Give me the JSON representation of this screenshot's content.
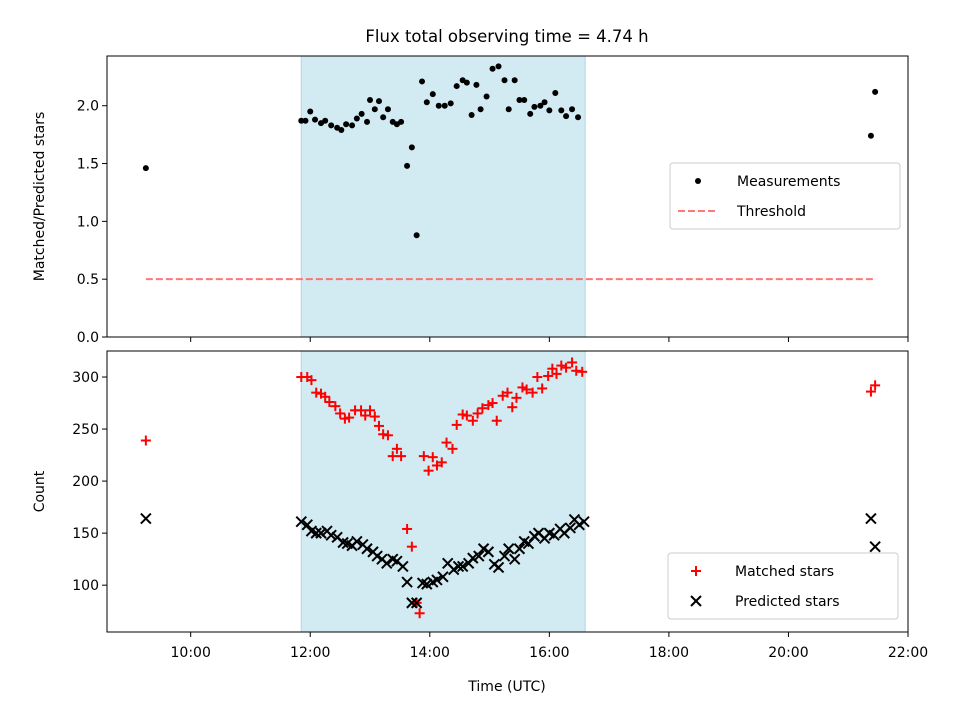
{
  "title": "Flux total observing time = 4.74 h",
  "colors": {
    "shade": "#add8e6",
    "threshold": "#ff6060",
    "matched": "#ff0000",
    "predicted": "#000000",
    "measure": "#000000"
  },
  "x_axis": {
    "label": "Time (UTC)",
    "min_hours": 8.6,
    "max_hours": 22.0,
    "ticks": [
      {
        "h": 10,
        "label": "10:00"
      },
      {
        "h": 12,
        "label": "12:00"
      },
      {
        "h": 14,
        "label": "14:00"
      },
      {
        "h": 16,
        "label": "16:00"
      },
      {
        "h": 18,
        "label": "18:00"
      },
      {
        "h": 20,
        "label": "20:00"
      },
      {
        "h": 22,
        "label": "22:00"
      }
    ]
  },
  "chart_data": [
    {
      "type": "scatter",
      "ylabel": "Matched/Predicted stars",
      "ylim": [
        0,
        2.43
      ],
      "yticks": [
        {
          "v": 0.0,
          "label": "0.0"
        },
        {
          "v": 0.5,
          "label": "0.5"
        },
        {
          "v": 1.0,
          "label": "1.0"
        },
        {
          "v": 1.5,
          "label": "1.5"
        },
        {
          "v": 2.0,
          "label": "2.0"
        }
      ],
      "shaded_span": [
        11.85,
        16.6
      ],
      "legend": {
        "position": "center-right",
        "entries": [
          "Measurements",
          "Threshold"
        ]
      },
      "threshold": {
        "name": "Threshold",
        "y": 0.5,
        "x": [
          9.25,
          21.42
        ]
      },
      "series": [
        {
          "name": "Measurements",
          "points": [
            [
              9.25,
              1.46
            ],
            [
              11.85,
              1.87
            ],
            [
              11.92,
              1.87
            ],
            [
              12.0,
              1.95
            ],
            [
              12.08,
              1.88
            ],
            [
              12.18,
              1.85
            ],
            [
              12.25,
              1.87
            ],
            [
              12.35,
              1.83
            ],
            [
              12.45,
              1.81
            ],
            [
              12.52,
              1.79
            ],
            [
              12.6,
              1.84
            ],
            [
              12.7,
              1.83
            ],
            [
              12.78,
              1.89
            ],
            [
              12.86,
              1.93
            ],
            [
              12.95,
              1.86
            ],
            [
              13.0,
              2.05
            ],
            [
              13.08,
              1.97
            ],
            [
              13.15,
              2.04
            ],
            [
              13.22,
              1.9
            ],
            [
              13.3,
              1.97
            ],
            [
              13.38,
              1.86
            ],
            [
              13.45,
              1.84
            ],
            [
              13.52,
              1.86
            ],
            [
              13.62,
              1.48
            ],
            [
              13.7,
              1.64
            ],
            [
              13.78,
              0.88
            ],
            [
              13.87,
              2.21
            ],
            [
              13.95,
              2.03
            ],
            [
              14.05,
              2.1
            ],
            [
              14.15,
              2.0
            ],
            [
              14.25,
              2.0
            ],
            [
              14.35,
              2.02
            ],
            [
              14.45,
              2.17
            ],
            [
              14.55,
              2.22
            ],
            [
              14.62,
              2.2
            ],
            [
              14.7,
              1.92
            ],
            [
              14.78,
              2.18
            ],
            [
              14.85,
              1.97
            ],
            [
              14.95,
              2.08
            ],
            [
              15.05,
              2.32
            ],
            [
              15.15,
              2.34
            ],
            [
              15.25,
              2.22
            ],
            [
              15.32,
              1.97
            ],
            [
              15.42,
              2.22
            ],
            [
              15.5,
              2.05
            ],
            [
              15.58,
              2.05
            ],
            [
              15.68,
              1.93
            ],
            [
              15.75,
              1.99
            ],
            [
              15.85,
              2.0
            ],
            [
              15.92,
              2.03
            ],
            [
              16.0,
              1.96
            ],
            [
              16.1,
              2.11
            ],
            [
              16.2,
              1.96
            ],
            [
              16.28,
              1.91
            ],
            [
              16.38,
              1.97
            ],
            [
              16.48,
              1.9
            ],
            [
              21.38,
              1.74
            ],
            [
              21.45,
              2.12
            ]
          ]
        }
      ]
    },
    {
      "type": "scatter",
      "ylabel": "Count",
      "ylim": [
        55,
        325
      ],
      "yticks": [
        {
          "v": 100,
          "label": "100"
        },
        {
          "v": 150,
          "label": "150"
        },
        {
          "v": 200,
          "label": "200"
        },
        {
          "v": 250,
          "label": "250"
        },
        {
          "v": 300,
          "label": "300"
        }
      ],
      "shaded_span": [
        11.85,
        16.6
      ],
      "legend": {
        "position": "lower-right",
        "entries": [
          "Matched stars",
          "Predicted stars"
        ]
      },
      "series": [
        {
          "name": "Matched stars",
          "marker": "plus",
          "points": [
            [
              9.25,
              239
            ],
            [
              11.85,
              300
            ],
            [
              11.95,
              300
            ],
            [
              12.02,
              297
            ],
            [
              12.1,
              285
            ],
            [
              12.18,
              284
            ],
            [
              12.25,
              281
            ],
            [
              12.32,
              276
            ],
            [
              12.42,
              272
            ],
            [
              12.5,
              265
            ],
            [
              12.58,
              260
            ],
            [
              12.65,
              261
            ],
            [
              12.75,
              268
            ],
            [
              12.85,
              268
            ],
            [
              12.92,
              263
            ],
            [
              13.0,
              268
            ],
            [
              13.08,
              262
            ],
            [
              13.15,
              253
            ],
            [
              13.22,
              245
            ],
            [
              13.3,
              244
            ],
            [
              13.38,
              224
            ],
            [
              13.45,
              231
            ],
            [
              13.52,
              224
            ],
            [
              13.62,
              154
            ],
            [
              13.7,
              137
            ],
            [
              13.78,
              83
            ],
            [
              13.83,
              73
            ],
            [
              13.9,
              224
            ],
            [
              13.98,
              210
            ],
            [
              14.05,
              223
            ],
            [
              14.12,
              215
            ],
            [
              14.2,
              218
            ],
            [
              14.28,
              237
            ],
            [
              14.38,
              231
            ],
            [
              14.45,
              254
            ],
            [
              14.55,
              264
            ],
            [
              14.62,
              263
            ],
            [
              14.72,
              258
            ],
            [
              14.8,
              265
            ],
            [
              14.88,
              270
            ],
            [
              14.98,
              273
            ],
            [
              15.05,
              275
            ],
            [
              15.12,
              258
            ],
            [
              15.22,
              282
            ],
            [
              15.3,
              285
            ],
            [
              15.38,
              271
            ],
            [
              15.45,
              280
            ],
            [
              15.55,
              290
            ],
            [
              15.62,
              288
            ],
            [
              15.72,
              285
            ],
            [
              15.8,
              300
            ],
            [
              15.88,
              289
            ],
            [
              15.98,
              301
            ],
            [
              16.05,
              308
            ],
            [
              16.12,
              303
            ],
            [
              16.2,
              311
            ],
            [
              16.28,
              309
            ],
            [
              16.38,
              314
            ],
            [
              16.45,
              306
            ],
            [
              16.55,
              305
            ],
            [
              21.38,
              286
            ],
            [
              21.45,
              292
            ]
          ]
        },
        {
          "name": "Predicted stars",
          "marker": "x",
          "points": [
            [
              9.25,
              164
            ],
            [
              11.85,
              161
            ],
            [
              11.95,
              158
            ],
            [
              12.02,
              152
            ],
            [
              12.1,
              150
            ],
            [
              12.18,
              150
            ],
            [
              12.28,
              152
            ],
            [
              12.35,
              148
            ],
            [
              12.45,
              146
            ],
            [
              12.55,
              141
            ],
            [
              12.62,
              140
            ],
            [
              12.7,
              138
            ],
            [
              12.78,
              142
            ],
            [
              12.88,
              139
            ],
            [
              12.95,
              135
            ],
            [
              13.05,
              132
            ],
            [
              13.12,
              128
            ],
            [
              13.2,
              125
            ],
            [
              13.28,
              121
            ],
            [
              13.38,
              125
            ],
            [
              13.45,
              123
            ],
            [
              13.55,
              118
            ],
            [
              13.62,
              103
            ],
            [
              13.7,
              83
            ],
            [
              13.78,
              83
            ],
            [
              13.88,
              102
            ],
            [
              13.95,
              101
            ],
            [
              14.05,
              103
            ],
            [
              14.12,
              105
            ],
            [
              14.22,
              108
            ],
            [
              14.3,
              121
            ],
            [
              14.4,
              115
            ],
            [
              14.48,
              118
            ],
            [
              14.55,
              118
            ],
            [
              14.65,
              121
            ],
            [
              14.72,
              126
            ],
            [
              14.82,
              128
            ],
            [
              14.9,
              135
            ],
            [
              14.98,
              132
            ],
            [
              15.08,
              120
            ],
            [
              15.15,
              117
            ],
            [
              15.25,
              128
            ],
            [
              15.32,
              135
            ],
            [
              15.42,
              125
            ],
            [
              15.5,
              135
            ],
            [
              15.58,
              142
            ],
            [
              15.65,
              140
            ],
            [
              15.75,
              147
            ],
            [
              15.82,
              150
            ],
            [
              15.92,
              145
            ],
            [
              16.0,
              150
            ],
            [
              16.08,
              148
            ],
            [
              16.18,
              154
            ],
            [
              16.25,
              150
            ],
            [
              16.35,
              155
            ],
            [
              16.42,
              163
            ],
            [
              16.5,
              158
            ],
            [
              16.58,
              161
            ],
            [
              21.38,
              164
            ],
            [
              21.45,
              137
            ]
          ]
        }
      ]
    }
  ]
}
